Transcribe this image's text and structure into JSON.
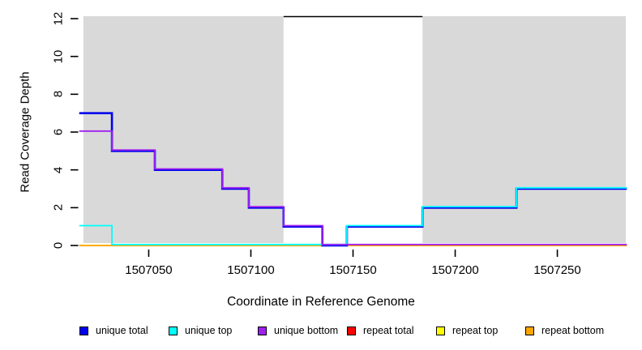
{
  "figure": {
    "background": "#ffffff"
  },
  "axes": {
    "x_title": "Coordinate in Reference Genome",
    "y_title": "Read Coverage Depth"
  },
  "chart_data": {
    "type": "line",
    "subtype": "step-after",
    "title": "",
    "xlabel": "Coordinate in Reference Genome",
    "ylabel": "Read Coverage Depth",
    "xlim": [
      1507015.7,
      1507283.5
    ],
    "ylim": [
      0,
      12
    ],
    "grid": false,
    "legend_position": "bottom",
    "x_ticks": [
      {
        "value": 1507050,
        "label": "1507050"
      },
      {
        "value": 1507100,
        "label": "1507100"
      },
      {
        "value": 1507150,
        "label": "1507150"
      },
      {
        "value": 1507200,
        "label": "1507200"
      },
      {
        "value": 1507250,
        "label": "1507250"
      }
    ],
    "y_ticks": [
      {
        "value": 0,
        "label": "0"
      },
      {
        "value": 2,
        "label": "2"
      },
      {
        "value": 4,
        "label": "4"
      },
      {
        "value": 6,
        "label": "6"
      },
      {
        "value": 8,
        "label": "8"
      },
      {
        "value": 10,
        "label": "10"
      },
      {
        "value": 12,
        "label": "12"
      }
    ],
    "repeat_region_color": "#D9D9D9",
    "repeat_regions": [
      [
        1507018,
        1507116
      ],
      [
        1507184,
        1507283.5
      ]
    ],
    "unmasked_cap_line": {
      "x": [
        1507116,
        1507184
      ],
      "y": 12.1,
      "color": "#000000"
    },
    "series": [
      {
        "name": "repeat total",
        "color": "#FF0000",
        "width": 1.8,
        "dy": 0,
        "points": [
          [
            1507016,
            0
          ],
          [
            1507284,
            0
          ]
        ]
      },
      {
        "name": "repeat top",
        "color": "#FFFF00",
        "width": 1.8,
        "dy": 0,
        "points": [
          [
            1507016,
            0
          ],
          [
            1507284,
            0
          ]
        ]
      },
      {
        "name": "repeat bottom",
        "color": "#FFA500",
        "width": 1.8,
        "dy": 0,
        "points": [
          [
            1507016,
            0
          ],
          [
            1507284,
            0
          ]
        ]
      },
      {
        "name": "unique total",
        "color": "#0000EE",
        "width": 2.6,
        "dy": 0,
        "points": [
          [
            1507016,
            7
          ],
          [
            1507032,
            5
          ],
          [
            1507053,
            4
          ],
          [
            1507086,
            3
          ],
          [
            1507099,
            2
          ],
          [
            1507116,
            1
          ],
          [
            1507135,
            0
          ],
          [
            1507147,
            1
          ],
          [
            1507184,
            2
          ],
          [
            1507230,
            3
          ],
          [
            1507284,
            3
          ]
        ]
      },
      {
        "name": "unique top",
        "color": "#00FFFF",
        "width": 1.8,
        "dy": -1.2,
        "points": [
          [
            1507016,
            1
          ],
          [
            1507032,
            0
          ],
          [
            1507147,
            1
          ],
          [
            1507184,
            2
          ],
          [
            1507230,
            3
          ],
          [
            1507284,
            3
          ]
        ]
      },
      {
        "name": "unique bottom",
        "color": "#A020F0",
        "width": 1.8,
        "dy": -1.2,
        "points": [
          [
            1507016,
            6
          ],
          [
            1507032,
            5
          ],
          [
            1507053,
            4
          ],
          [
            1507086,
            3
          ],
          [
            1507099,
            2
          ],
          [
            1507116,
            1
          ],
          [
            1507135,
            0
          ],
          [
            1507284,
            0
          ]
        ]
      }
    ]
  },
  "legend": {
    "items": [
      {
        "label": "unique total",
        "color": "#0000EE"
      },
      {
        "label": "unique top",
        "color": "#00FFFF"
      },
      {
        "label": "unique bottom",
        "color": "#A020F0"
      },
      {
        "label": "repeat total",
        "color": "#FF0000"
      },
      {
        "label": "repeat top",
        "color": "#FFFF00"
      },
      {
        "label": "repeat bottom",
        "color": "#FFA500"
      }
    ]
  }
}
